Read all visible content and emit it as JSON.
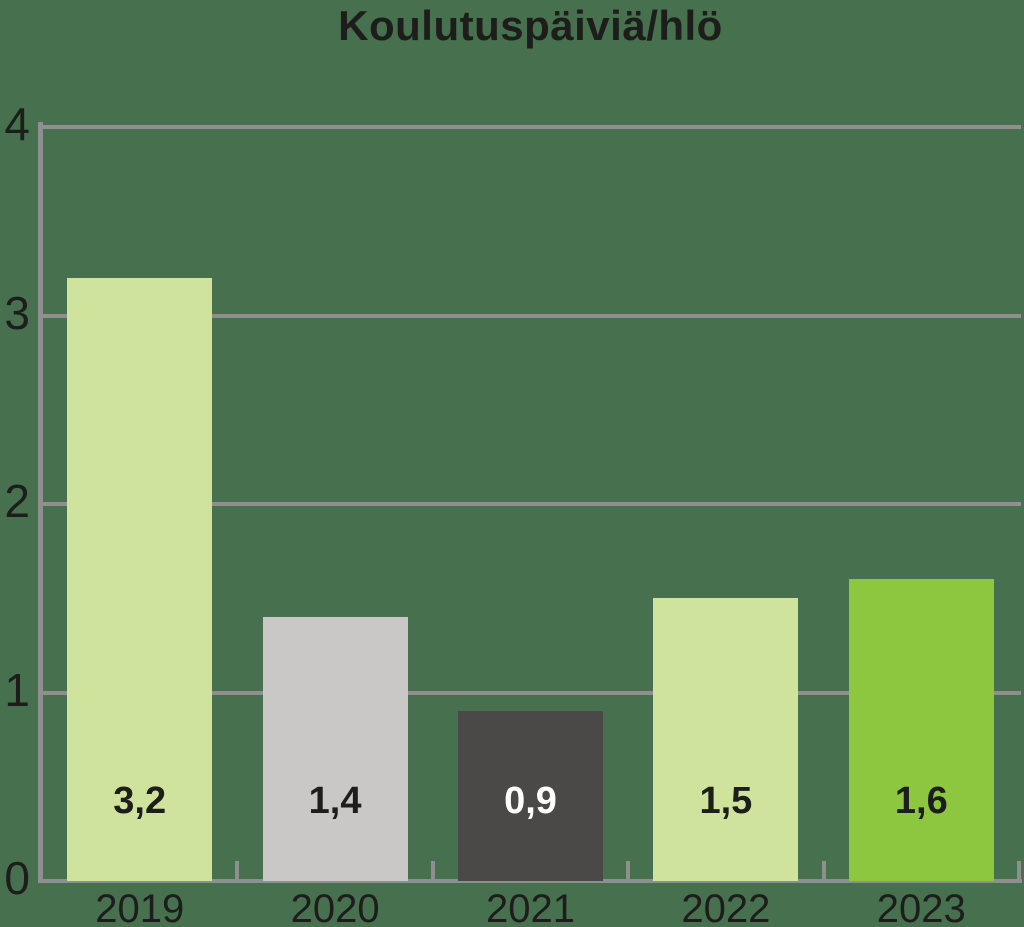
{
  "chart_data": {
    "type": "bar",
    "title": "Koulutuspäiviä/hlö",
    "categories": [
      "2019",
      "2020",
      "2021",
      "2022",
      "2023"
    ],
    "values": [
      3.2,
      1.4,
      0.9,
      1.5,
      1.6
    ],
    "value_labels": [
      "3,2",
      "1,4",
      "0,9",
      "1,5",
      "1,6"
    ],
    "bar_colors": [
      "#CFE39D",
      "#C9C8C6",
      "#4A4947",
      "#CFE39D",
      "#8DC63F"
    ],
    "value_label_colors": [
      "#1D1D1B",
      "#1D1D1B",
      "#FFFFFF",
      "#1D1D1B",
      "#1D1D1B"
    ],
    "xlabel": "",
    "ylabel": "",
    "ylim": [
      0,
      4
    ],
    "y_ticks": [
      0,
      1,
      2,
      3,
      4
    ],
    "y_tick_labels": [
      "0",
      "1",
      "2",
      "3",
      "4"
    ],
    "grid": true,
    "legend": false
  },
  "colors": {
    "background": "#47714E",
    "axis": "#8F8F8F",
    "text": "#1D1D1B"
  }
}
